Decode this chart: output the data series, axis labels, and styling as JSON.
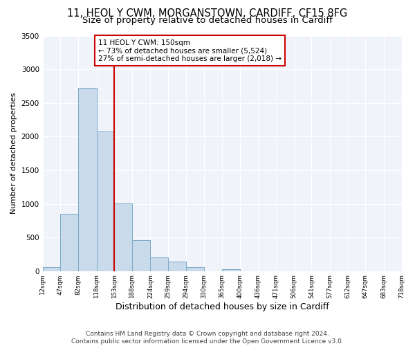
{
  "title1": "11, HEOL Y CWM, MORGANSTOWN, CARDIFF, CF15 8FG",
  "title2": "Size of property relative to detached houses in Cardiff",
  "xlabel": "Distribution of detached houses by size in Cardiff",
  "ylabel": "Number of detached properties",
  "bin_edges": [
    12,
    47,
    82,
    118,
    153,
    188,
    224,
    259,
    294,
    330,
    365,
    400,
    436,
    471,
    506,
    541,
    577,
    612,
    647,
    683,
    718
  ],
  "bar_heights": [
    55,
    850,
    2725,
    2075,
    1005,
    455,
    205,
    145,
    55,
    0,
    30,
    0,
    0,
    0,
    0,
    0,
    0,
    0,
    0,
    0
  ],
  "bar_color": "#c9daea",
  "bar_edge_color": "#7baac8",
  "vline_x": 153,
  "vline_color": "#cc0000",
  "annotation_line1": "11 HEOL Y CWM: 150sqm",
  "annotation_line2": "← 73% of detached houses are smaller (5,524)",
  "annotation_line3": "27% of semi-detached houses are larger (2,018) →",
  "annotation_box_color": "#cc0000",
  "ylim": [
    0,
    3500
  ],
  "yticks": [
    0,
    500,
    1000,
    1500,
    2000,
    2500,
    3000,
    3500
  ],
  "tick_labels": [
    "12sqm",
    "47sqm",
    "82sqm",
    "118sqm",
    "153sqm",
    "188sqm",
    "224sqm",
    "259sqm",
    "294sqm",
    "330sqm",
    "365sqm",
    "400sqm",
    "436sqm",
    "471sqm",
    "506sqm",
    "541sqm",
    "577sqm",
    "612sqm",
    "647sqm",
    "683sqm",
    "718sqm"
  ],
  "footer_text": "Contains HM Land Registry data © Crown copyright and database right 2024.\nContains public sector information licensed under the Open Government Licence v3.0.",
  "background_color": "#ffffff",
  "plot_bg_color": "#f0f4fa",
  "grid_color": "#ffffff",
  "title1_fontsize": 10.5,
  "title2_fontsize": 9.5,
  "xlabel_fontsize": 9,
  "ylabel_fontsize": 8,
  "footer_fontsize": 6.5
}
